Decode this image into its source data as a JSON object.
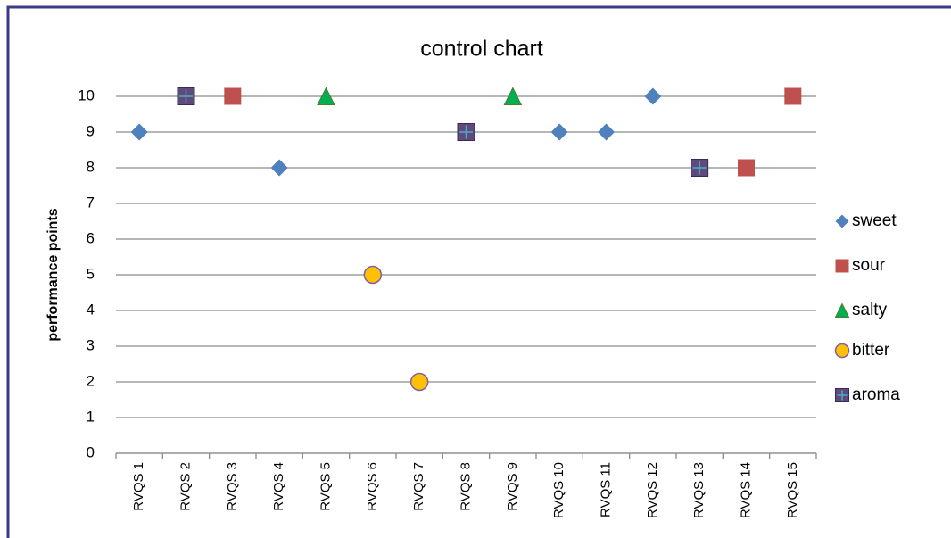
{
  "chart_data": {
    "type": "scatter",
    "title": "control chart",
    "y_label": "performance points",
    "categories": [
      "RVQS 1",
      "RVQS 2",
      "RVQS 3",
      "RVQS 4",
      "RVQS 5",
      "RVQS 6",
      "RVQS 7",
      "RVQS 8",
      "RVQS 9",
      "RVQS 10",
      "RVQS 11",
      "RVQS 12",
      "RVQS 13",
      "RVQS 14",
      "RVQS 15"
    ],
    "series": [
      {
        "name": "sweet",
        "color": "#4f81bd",
        "marker": "diamond",
        "values": [
          9,
          null,
          null,
          8,
          null,
          null,
          null,
          null,
          null,
          9,
          9,
          10,
          null,
          null,
          null
        ]
      },
      {
        "name": "sour",
        "color": "#c0504d",
        "marker": "square",
        "values": [
          null,
          null,
          10,
          null,
          null,
          null,
          null,
          null,
          null,
          null,
          null,
          null,
          null,
          8,
          10
        ]
      },
      {
        "name": "salty",
        "color": "#00b050",
        "marker": "triangle",
        "values": [
          null,
          null,
          null,
          null,
          10,
          null,
          null,
          null,
          10,
          null,
          null,
          null,
          null,
          null,
          null
        ]
      },
      {
        "name": "bitter",
        "color": "#ffc000",
        "marker": "circle",
        "values": [
          null,
          null,
          null,
          null,
          null,
          5,
          2,
          null,
          null,
          null,
          null,
          null,
          null,
          null,
          null
        ]
      },
      {
        "name": "aroma",
        "color": "#604a7b",
        "marker": "plus-square",
        "values": [
          null,
          10,
          null,
          null,
          null,
          null,
          null,
          9,
          null,
          null,
          null,
          null,
          8,
          null,
          null
        ]
      }
    ],
    "ylim": [
      0,
      10
    ],
    "yticks": [
      0,
      1,
      2,
      3,
      4,
      5,
      6,
      7,
      8,
      9,
      10
    ],
    "grid": true,
    "legend": "right"
  }
}
